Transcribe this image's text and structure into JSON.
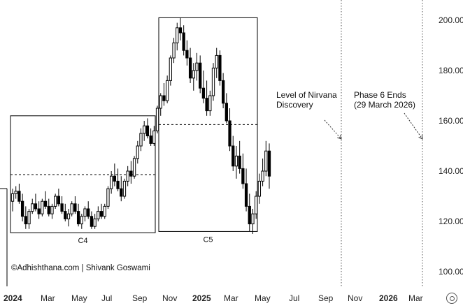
{
  "chart_data": {
    "type": "candlestick",
    "y_ticks": [
      "200.00",
      "180.00",
      "160.00",
      "140.00",
      "120.00",
      "100.00"
    ],
    "ylim": [
      96,
      203
    ],
    "x_ticks": [
      "2024",
      "Mar",
      "May",
      "Jul",
      "Sep",
      "Nov",
      "2025",
      "Mar",
      "May",
      "Jul",
      "Sep",
      "Nov",
      "2026",
      "Mar"
    ],
    "x_ticks_bold": [
      "2024",
      "2025",
      "2026"
    ],
    "boxes": [
      {
        "label": "C4",
        "high": 162,
        "low": 115.5,
        "mid": 138.6
      },
      {
        "label": "C5",
        "high": 201,
        "low": 116,
        "mid": 158.5
      }
    ],
    "annotations": [
      {
        "text": [
          "Level of Nirvana",
          "Discovery"
        ]
      },
      {
        "text": [
          "Phase 6 Ends",
          "(29 March 2026)"
        ]
      }
    ],
    "credit": "©Adhishthana.com | Shivank Goswami",
    "candles": [
      [
        128,
        133,
        124,
        131
      ],
      [
        131,
        134,
        129,
        132
      ],
      [
        132,
        135,
        127,
        128
      ],
      [
        128,
        131,
        120,
        122
      ],
      [
        122,
        126,
        117,
        119
      ],
      [
        119,
        125,
        117,
        124
      ],
      [
        124,
        129,
        123,
        127
      ],
      [
        127,
        131,
        124,
        125
      ],
      [
        125,
        128,
        121,
        123
      ],
      [
        123,
        129,
        122,
        128
      ],
      [
        128,
        132,
        125,
        126
      ],
      [
        126,
        129,
        122,
        123
      ],
      [
        123,
        127,
        121,
        126
      ],
      [
        126,
        131,
        125,
        130
      ],
      [
        130,
        133,
        126,
        127
      ],
      [
        127,
        130,
        123,
        124
      ],
      [
        124,
        127,
        120,
        121
      ],
      [
        121,
        125,
        118,
        123
      ],
      [
        123,
        128,
        122,
        127
      ],
      [
        127,
        130,
        123,
        124
      ],
      [
        124,
        127,
        118,
        119
      ],
      [
        119,
        123,
        117,
        122
      ],
      [
        122,
        126,
        120,
        125
      ],
      [
        125,
        128,
        121,
        122
      ],
      [
        122,
        124,
        117,
        118
      ],
      [
        118,
        123,
        117,
        121
      ],
      [
        121,
        126,
        120,
        124
      ],
      [
        124,
        127,
        121,
        122
      ],
      [
        122,
        127,
        121,
        126
      ],
      [
        126,
        134,
        125,
        133
      ],
      [
        133,
        140,
        131,
        138
      ],
      [
        138,
        143,
        134,
        136
      ],
      [
        136,
        141,
        132,
        133
      ],
      [
        133,
        138,
        128,
        130
      ],
      [
        130,
        137,
        129,
        136
      ],
      [
        136,
        142,
        134,
        140
      ],
      [
        140,
        144,
        135,
        138
      ],
      [
        138,
        146,
        137,
        145
      ],
      [
        145,
        152,
        143,
        150
      ],
      [
        150,
        157,
        148,
        155
      ],
      [
        155,
        160,
        152,
        158
      ],
      [
        158,
        161,
        153,
        154
      ],
      [
        154,
        157,
        150,
        151
      ],
      [
        151,
        158,
        150,
        156
      ],
      [
        156,
        166,
        155,
        165
      ],
      [
        165,
        171,
        162,
        170
      ],
      [
        170,
        175,
        166,
        168
      ],
      [
        168,
        178,
        167,
        176
      ],
      [
        176,
        186,
        174,
        185
      ],
      [
        185,
        193,
        183,
        191
      ],
      [
        191,
        199,
        188,
        197
      ],
      [
        197,
        201,
        192,
        195
      ],
      [
        195,
        198,
        186,
        188
      ],
      [
        188,
        192,
        182,
        185
      ],
      [
        185,
        189,
        175,
        177
      ],
      [
        177,
        183,
        172,
        180
      ],
      [
        180,
        187,
        176,
        183
      ],
      [
        183,
        186,
        171,
        173
      ],
      [
        173,
        180,
        167,
        169
      ],
      [
        169,
        176,
        162,
        164
      ],
      [
        164,
        172,
        162,
        170
      ],
      [
        170,
        183,
        168,
        181
      ],
      [
        181,
        189,
        177,
        186
      ],
      [
        186,
        188,
        174,
        176
      ],
      [
        176,
        179,
        165,
        167
      ],
      [
        167,
        171,
        159,
        160
      ],
      [
        160,
        165,
        148,
        150
      ],
      [
        150,
        154,
        140,
        142
      ],
      [
        142,
        150,
        137,
        146
      ],
      [
        146,
        152,
        139,
        141
      ],
      [
        141,
        147,
        133,
        135
      ],
      [
        135,
        141,
        124,
        126
      ],
      [
        126,
        131,
        116,
        119
      ],
      [
        119,
        125,
        115,
        123
      ],
      [
        123,
        132,
        121,
        130
      ],
      [
        130,
        139,
        127,
        136
      ],
      [
        136,
        145,
        134,
        140
      ],
      [
        140,
        152,
        138,
        148
      ],
      [
        148,
        151,
        133,
        138
      ]
    ]
  }
}
